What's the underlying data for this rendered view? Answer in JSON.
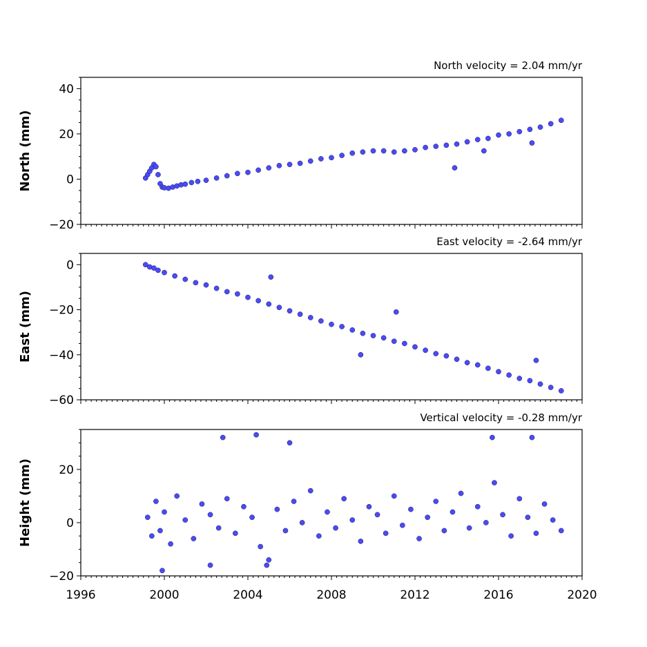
{
  "chart_data": [
    {
      "type": "scatter",
      "title": "North velocity = 2.04 mm/yr",
      "ylabel": "North (mm)",
      "ylim": [
        -20,
        45
      ],
      "yticks": [
        -20,
        0,
        20,
        40
      ],
      "xlim": [
        1996,
        2020
      ],
      "xticks": [
        1996,
        2000,
        2004,
        2008,
        2012,
        2016,
        2020
      ],
      "series": [
        {
          "color": "#4a4afa",
          "x": [
            1999.1,
            1999.2,
            1999.3,
            1999.4,
            1999.5,
            1999.6,
            1999.7,
            1999.8,
            1999.9,
            2000.0,
            2000.2,
            2000.4,
            2000.6,
            2000.8,
            2001.0,
            2001.3,
            2001.6,
            2002.0,
            2002.5,
            2003.0,
            2003.5,
            2004.0,
            2004.5,
            2005.0,
            2005.5,
            2006.0,
            2006.5,
            2007.0,
            2007.5,
            2008.0,
            2008.5,
            2009.0,
            2009.5,
            2010.0,
            2010.5,
            2011.0,
            2011.5,
            2012.0,
            2012.5,
            2013.0,
            2013.5,
            2014.0,
            2014.5,
            2015.0,
            2015.5,
            2016.0,
            2016.5,
            2017.0,
            2017.5,
            2018.0,
            2018.5,
            2019.0,
            2013.9,
            2015.3,
            2017.6
          ],
          "y": [
            0.5,
            2.0,
            3.5,
            5.0,
            6.5,
            5.5,
            2.0,
            -2.0,
            -3.5,
            -3.8,
            -4.0,
            -3.5,
            -3.0,
            -2.5,
            -2.2,
            -1.5,
            -1.0,
            -0.5,
            0.5,
            1.5,
            2.5,
            3.0,
            4.0,
            5.0,
            6.0,
            6.5,
            7.0,
            8.0,
            9.0,
            9.5,
            10.5,
            11.5,
            12.0,
            12.5,
            12.5,
            12.0,
            12.5,
            13.0,
            14.0,
            14.5,
            15.0,
            15.5,
            16.5,
            17.5,
            18.0,
            19.5,
            20.0,
            21.0,
            22.0,
            23.0,
            24.5,
            26.0,
            5.0,
            12.5,
            16.0
          ]
        }
      ]
    },
    {
      "type": "scatter",
      "title": "East velocity = -2.64 mm/yr",
      "ylabel": "East (mm)",
      "ylim": [
        -60,
        5
      ],
      "yticks": [
        -60,
        -40,
        -20,
        0
      ],
      "xlim": [
        1996,
        2020
      ],
      "xticks": [
        1996,
        2000,
        2004,
        2008,
        2012,
        2016,
        2020
      ],
      "series": [
        {
          "color": "#4a4afa",
          "x": [
            1999.1,
            1999.3,
            1999.5,
            1999.7,
            2000.0,
            2000.5,
            2001.0,
            2001.5,
            2002.0,
            2002.5,
            2003.0,
            2003.5,
            2004.0,
            2004.5,
            2005.0,
            2005.5,
            2006.0,
            2006.5,
            2007.0,
            2007.5,
            2008.0,
            2008.5,
            2009.0,
            2009.5,
            2010.0,
            2010.5,
            2011.0,
            2011.5,
            2012.0,
            2012.5,
            2013.0,
            2013.5,
            2014.0,
            2014.5,
            2015.0,
            2015.5,
            2016.0,
            2016.5,
            2017.0,
            2017.5,
            2018.0,
            2018.5,
            2019.0,
            2005.1,
            2011.1,
            2009.4,
            2017.8
          ],
          "y": [
            0.0,
            -1.0,
            -1.5,
            -2.5,
            -3.5,
            -5.0,
            -6.5,
            -8.0,
            -9.0,
            -10.5,
            -12.0,
            -13.0,
            -14.5,
            -16.0,
            -17.5,
            -19.0,
            -20.5,
            -22.0,
            -23.5,
            -25.0,
            -26.5,
            -27.5,
            -29.0,
            -30.5,
            -31.5,
            -32.5,
            -34.0,
            -35.0,
            -36.5,
            -38.0,
            -39.5,
            -40.5,
            -42.0,
            -43.5,
            -44.5,
            -46.0,
            -47.5,
            -49.0,
            -50.5,
            -51.5,
            -53.0,
            -54.5,
            -56.0,
            -5.5,
            -21.0,
            -40.0,
            -42.5
          ]
        }
      ]
    },
    {
      "type": "scatter",
      "title": "Vertical velocity = -0.28 mm/yr",
      "ylabel": "Height (mm)",
      "ylim": [
        -20,
        35
      ],
      "yticks": [
        -20,
        0,
        20
      ],
      "xlim": [
        1996,
        2020
      ],
      "xticks": [
        1996,
        2000,
        2004,
        2008,
        2012,
        2016,
        2020
      ],
      "series": [
        {
          "color": "#4a4afa",
          "x": [
            1999.2,
            1999.4,
            1999.6,
            1999.8,
            2000.0,
            2000.3,
            2000.6,
            2001.0,
            2001.4,
            2001.8,
            2002.2,
            2002.6,
            2003.0,
            2003.4,
            2003.8,
            2004.2,
            2004.6,
            2005.0,
            2005.4,
            2005.8,
            2006.2,
            2006.6,
            2007.0,
            2007.4,
            2007.8,
            2008.2,
            2008.6,
            2009.0,
            2009.4,
            2009.8,
            2010.2,
            2010.6,
            2011.0,
            2011.4,
            2011.8,
            2012.2,
            2012.6,
            2013.0,
            2013.4,
            2013.8,
            2014.2,
            2014.6,
            2015.0,
            2015.4,
            2015.8,
            2016.2,
            2016.6,
            2017.0,
            2017.4,
            2017.8,
            2018.2,
            2018.6,
            2019.0,
            2002.8,
            2004.4,
            2006.0,
            2015.7,
            2017.6,
            1999.9,
            2004.9,
            2002.2
          ],
          "y": [
            2,
            -5,
            8,
            -3,
            4,
            -8,
            10,
            1,
            -6,
            7,
            3,
            -2,
            9,
            -4,
            6,
            2,
            -9,
            -14,
            5,
            -3,
            8,
            0,
            12,
            -5,
            4,
            -2,
            9,
            1,
            -7,
            6,
            3,
            -4,
            10,
            -1,
            5,
            -6,
            2,
            8,
            -3,
            4,
            11,
            -2,
            6,
            0,
            15,
            3,
            -5,
            9,
            2,
            -4,
            7,
            1,
            -3,
            32,
            33,
            30,
            32,
            32,
            -18,
            -16,
            -16
          ]
        }
      ]
    }
  ]
}
